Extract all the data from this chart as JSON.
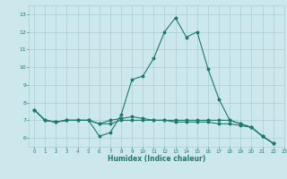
{
  "title": "",
  "xlabel": "Humidex (Indice chaleur)",
  "ylabel": "",
  "background_color": "#cde8ec",
  "grid_color": "#aacdd4",
  "line_color": "#1a7a6e",
  "xlim": [
    -0.5,
    23
  ],
  "ylim": [
    5.5,
    13.5
  ],
  "yticks": [
    6,
    7,
    8,
    9,
    10,
    11,
    12,
    13
  ],
  "xticks": [
    0,
    1,
    2,
    3,
    4,
    5,
    6,
    7,
    8,
    9,
    10,
    11,
    12,
    13,
    14,
    15,
    16,
    17,
    18,
    19,
    20,
    21,
    22,
    23
  ],
  "series": [
    [
      7.6,
      7.0,
      6.9,
      7.0,
      7.0,
      7.0,
      6.1,
      6.3,
      7.3,
      9.3,
      9.5,
      10.5,
      12.0,
      12.8,
      11.7,
      12.0,
      9.9,
      8.2,
      7.0,
      6.8,
      6.6,
      6.1,
      5.7
    ],
    [
      7.6,
      7.0,
      6.9,
      7.0,
      7.0,
      7.0,
      6.8,
      6.8,
      7.0,
      7.0,
      7.0,
      7.0,
      7.0,
      7.0,
      7.0,
      7.0,
      7.0,
      7.0,
      7.0,
      6.8,
      6.6,
      6.1,
      5.7
    ],
    [
      7.6,
      7.0,
      6.9,
      7.0,
      7.0,
      7.0,
      6.8,
      7.0,
      7.1,
      7.2,
      7.1,
      7.0,
      7.0,
      6.9,
      6.9,
      6.9,
      6.9,
      6.8,
      6.8,
      6.7,
      6.6,
      6.1,
      5.7
    ]
  ],
  "font_color": "#1a7a6e",
  "figsize": [
    3.2,
    2.0
  ],
  "dpi": 100
}
